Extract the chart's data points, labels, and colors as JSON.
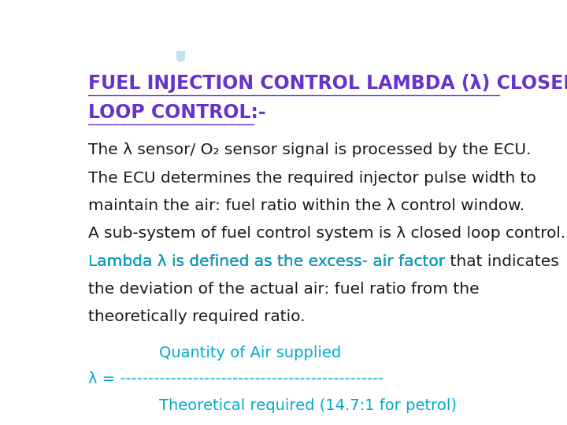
{
  "background_color": "#ffffff",
  "title_color": "#6633cc",
  "title_text_line1": "FUEL INJECTION CONTROL LAMBDA (λ) CLOSED",
  "title_text_line2": "LOOP CONTROL:-",
  "body_color": "#1a1a1a",
  "cyan_color": "#00aacc",
  "body_lines": [
    "The λ sensor/ O₂ sensor signal is processed by the ECU.",
    "The ECU determines the required injector pulse width to",
    "maintain the air: fuel ratio within the λ control window.",
    "A sub-system of fuel control system is λ closed loop control."
  ],
  "mixed_line_cyan": "Lambda λ is defined as the excess- air factor",
  "mixed_line_black": " that indicates",
  "body_lines2": [
    "the deviation of the actual air: fuel ratio from the",
    "theoretically required ratio."
  ],
  "formula_numerator": "Quantity of Air supplied",
  "formula_lambda": "λ = ",
  "formula_dashes": "-----------------------------------------------",
  "formula_denominator": "Theoretical required (14.7:1 for petrol)",
  "title_font_size": 17,
  "body_font_size": 14.5,
  "formula_font_size": 14
}
